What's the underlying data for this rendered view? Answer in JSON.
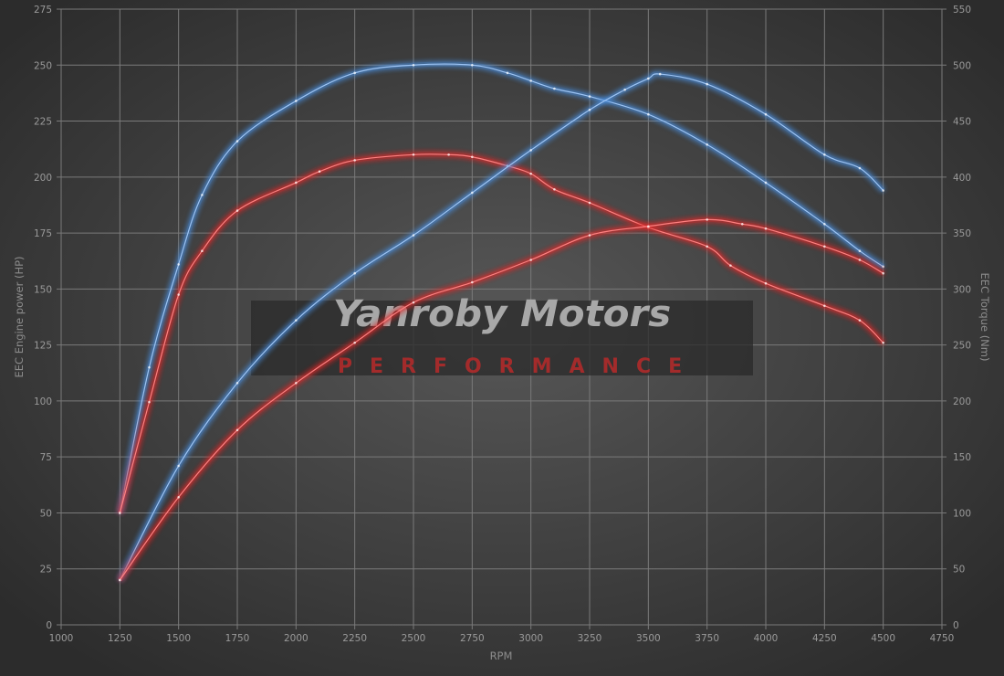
{
  "chart_data": {
    "type": "line",
    "xlabel": "RPM",
    "ylabel_left": "EEC Engine power (HP)",
    "ylabel_right": "EEC Torque (Nm)",
    "xlim": [
      1000,
      4750
    ],
    "xticks": [
      1000,
      1250,
      1500,
      1750,
      2000,
      2250,
      2500,
      2750,
      3000,
      3250,
      3500,
      3750,
      4000,
      4250,
      4500,
      4750
    ],
    "ylim_left": [
      0,
      275
    ],
    "yticks_left": [
      0,
      25,
      50,
      75,
      100,
      125,
      150,
      175,
      200,
      225,
      250,
      275
    ],
    "ylim_right": [
      0,
      550
    ],
    "yticks_right": [
      0,
      50,
      100,
      150,
      200,
      250,
      300,
      350,
      400,
      450,
      500,
      550
    ],
    "grid": true,
    "colors": {
      "tuned": "#4a8fe0",
      "stock": "#e02828",
      "background_center": "#555555",
      "background_edge": "#2e2e2e"
    },
    "series": [
      {
        "axis": "right",
        "color": "#4a8fe0",
        "x": [
          1250,
          1375,
          1500,
          1600,
          1750,
          2000,
          2250,
          2500,
          2750,
          2900,
          3000,
          3100,
          3250,
          3500,
          3750,
          4000,
          4250,
          4400,
          4500
        ],
        "y": [
          100,
          230,
          322,
          384,
          432,
          468,
          493,
          500,
          500,
          493,
          486,
          479,
          472,
          456,
          429,
          395,
          358,
          334,
          320
        ]
      },
      {
        "axis": "right",
        "color": "#e02828",
        "x": [
          1250,
          1375,
          1500,
          1600,
          1750,
          2000,
          2100,
          2250,
          2500,
          2650,
          2750,
          2900,
          3000,
          3100,
          3250,
          3500,
          3750,
          3850,
          4000,
          4250,
          4400,
          4500
        ],
        "y": [
          100,
          199,
          295,
          334,
          370,
          395,
          405,
          415,
          420,
          420,
          418,
          410,
          403,
          389,
          377,
          355,
          338,
          321,
          305,
          285,
          272,
          252
        ]
      },
      {
        "axis": "left",
        "color": "#4a8fe0",
        "x": [
          1250,
          1500,
          1750,
          2000,
          2250,
          2500,
          2750,
          3000,
          3250,
          3400,
          3500,
          3550,
          3750,
          4000,
          4250,
          4400,
          4500
        ],
        "y": [
          20,
          71,
          108,
          136,
          157,
          174,
          193,
          212,
          230,
          239,
          244,
          246,
          241.5,
          228,
          210,
          204,
          194
        ]
      },
      {
        "axis": "left",
        "color": "#e02828",
        "x": [
          1250,
          1500,
          1750,
          2000,
          2250,
          2500,
          2750,
          3000,
          3250,
          3500,
          3750,
          3900,
          4000,
          4250,
          4400,
          4500
        ],
        "y": [
          20,
          57,
          87,
          108,
          126,
          144,
          153,
          163,
          174,
          178,
          181,
          179,
          177,
          169,
          163,
          157
        ]
      }
    ]
  },
  "watermark": {
    "brand": "Yanroby Motors",
    "tagline": "PERFORMANCE"
  }
}
